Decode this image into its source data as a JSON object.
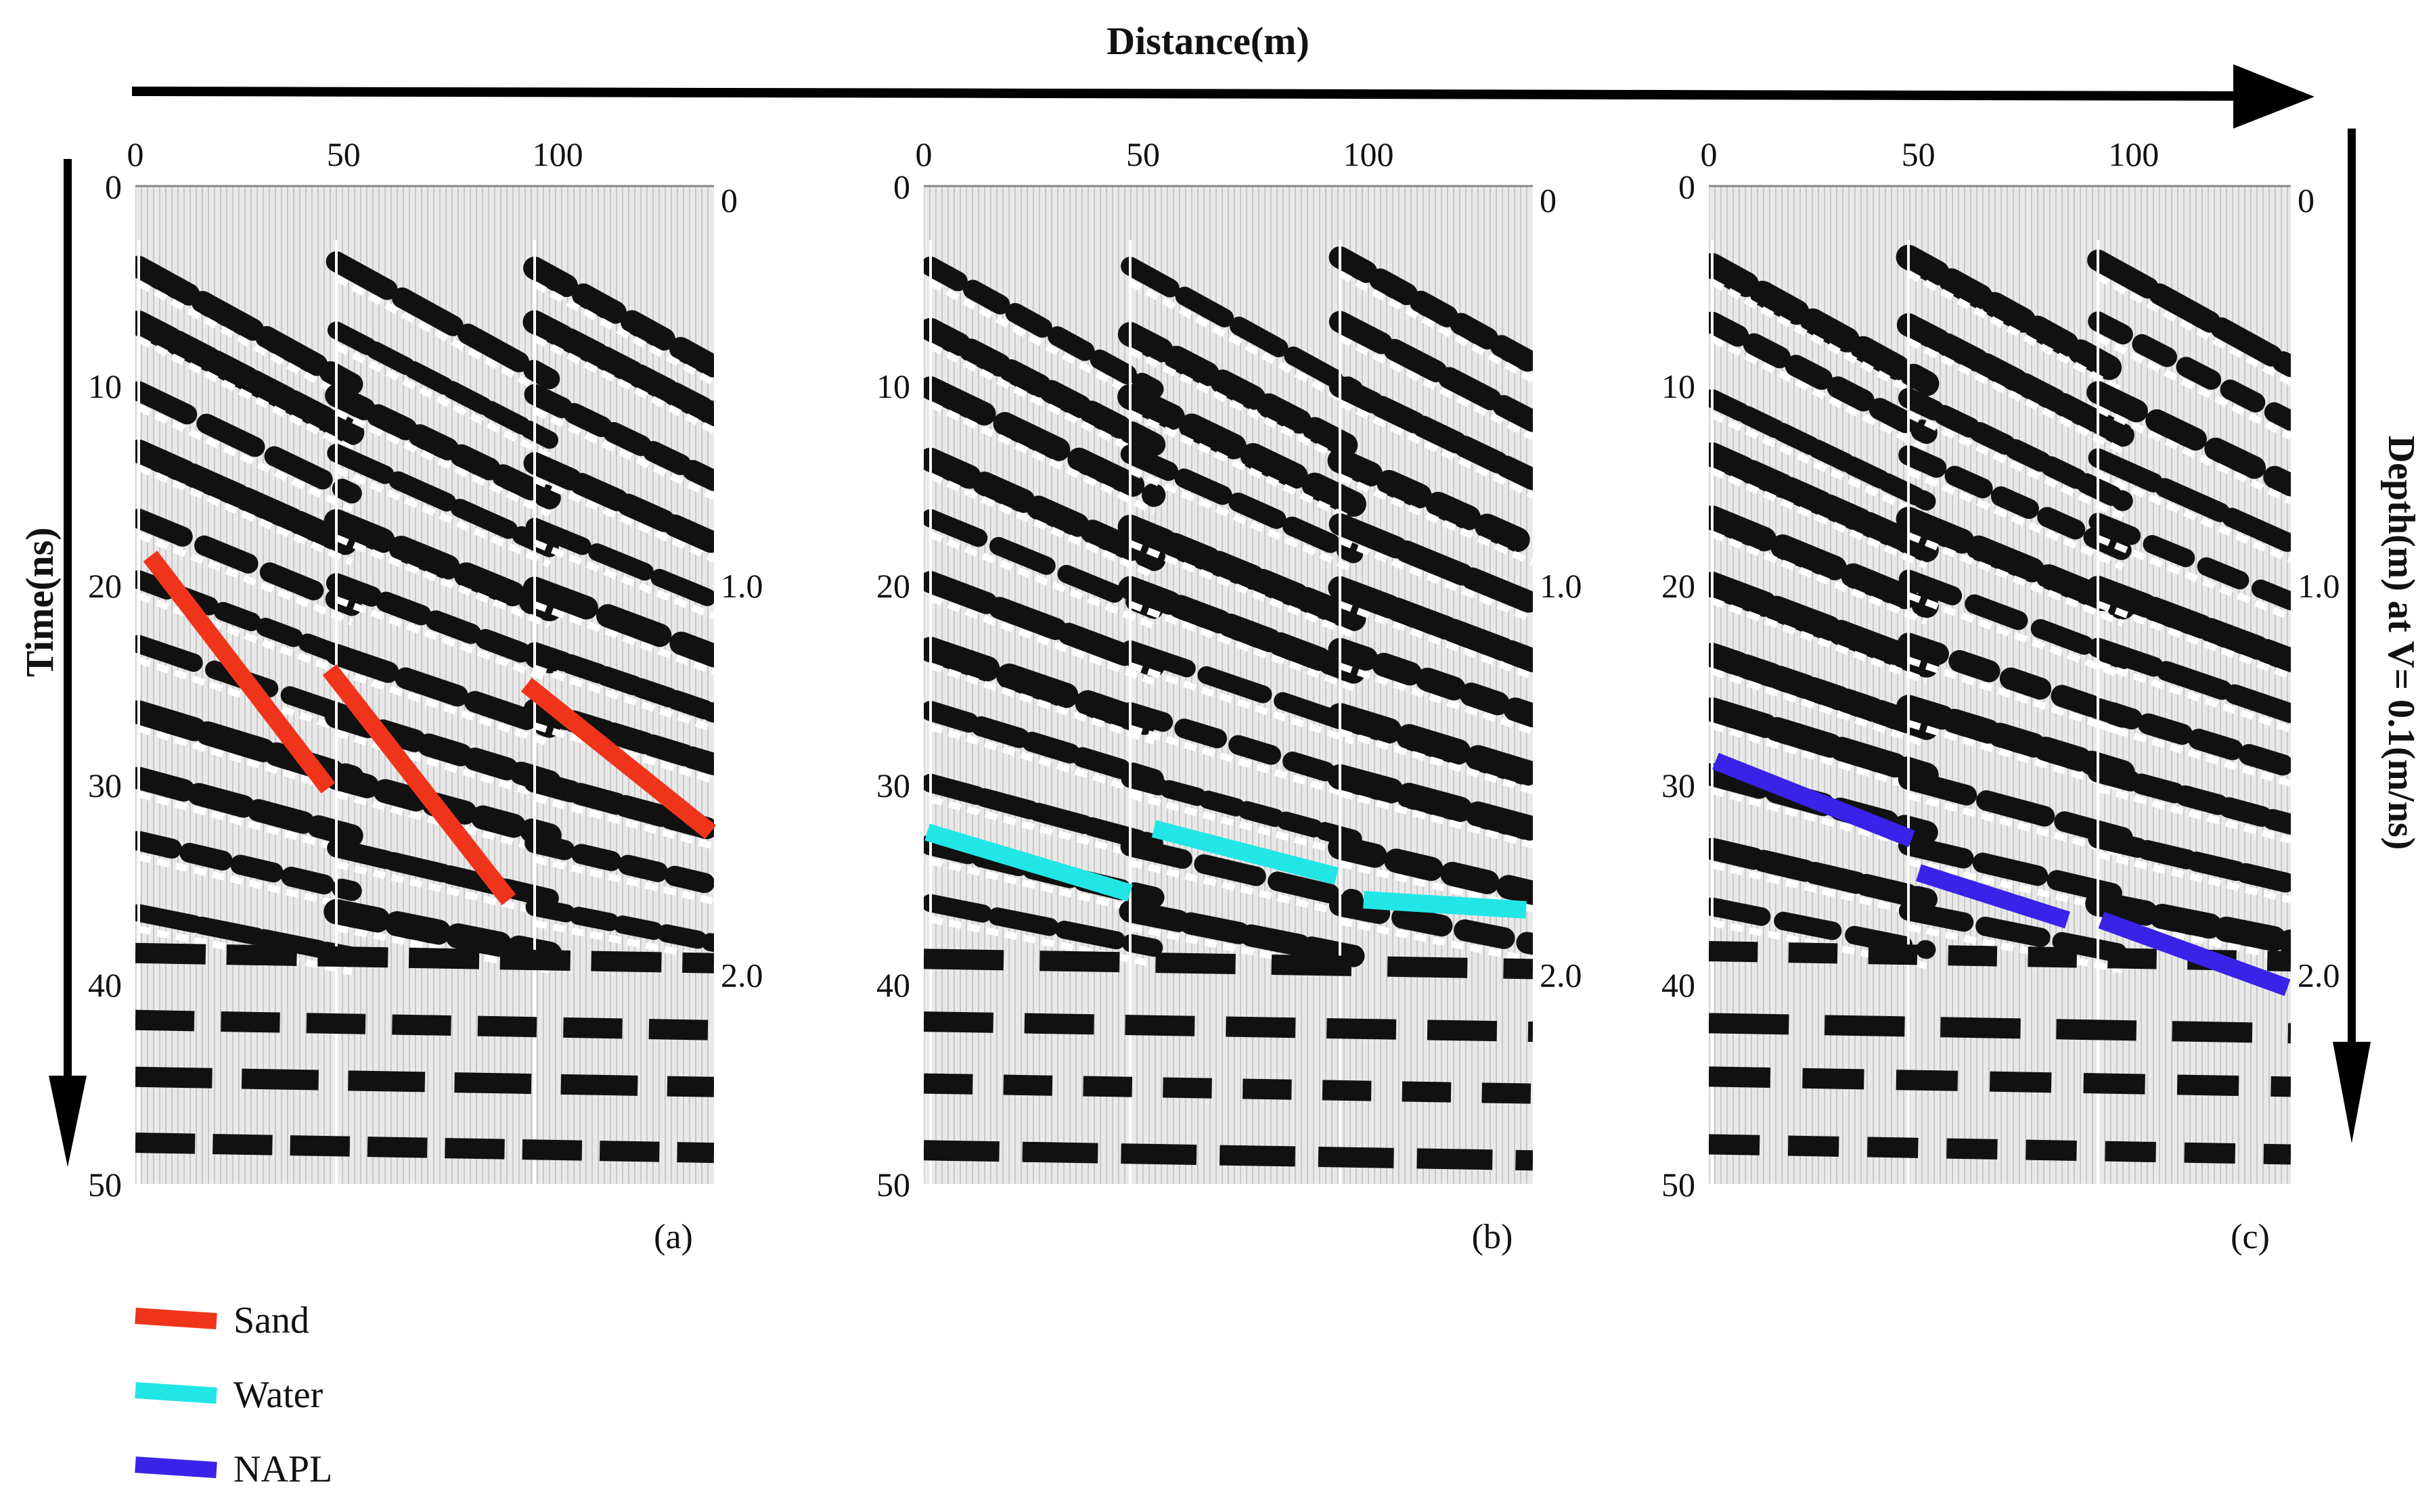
{
  "figure": {
    "distance_axis_label": "Distance(m)",
    "time_axis_label": "Time(ns)",
    "depth_axis_label": "Depth(m) at V= 0.1(m/ns)",
    "distance_ticks": [
      "0",
      "50",
      "100"
    ],
    "time_ticks": [
      "0",
      "10",
      "20",
      "30",
      "40",
      "50"
    ],
    "depth_ticks": [
      "0",
      "1.0",
      "2.0"
    ]
  },
  "panels": [
    {
      "label": "(a)",
      "material": "Sand"
    },
    {
      "label": "(b)",
      "material": "Water"
    },
    {
      "label": "(c)",
      "material": "NAPL"
    }
  ],
  "legend": [
    {
      "name": "Sand",
      "color": "#f0341c"
    },
    {
      "name": "Water",
      "color": "#22e6e6"
    },
    {
      "name": "NAPL",
      "color": "#3a22e8"
    }
  ]
}
